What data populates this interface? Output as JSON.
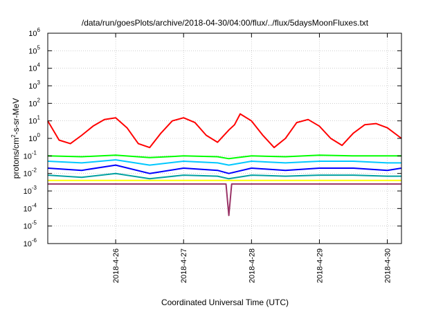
{
  "chart_data": {
    "type": "line",
    "title": "/data/run/goesPlots/archive/2018-04-30/04:00/flux/../flux/5daysMoonFluxes.txt",
    "xlabel": "Coordinated Universal Time (UTC)",
    "ylabel": "protons/cm2-s-sr-MeV",
    "ylabel_parts": {
      "before": "protons/cm",
      "sup": "2",
      "after": "-s-sr-MeV"
    },
    "y_scale": "log",
    "ylim": [
      1e-06,
      1000000.0
    ],
    "xlim": [
      "2018-04-25 00:00",
      "2018-04-30 05:00"
    ],
    "grid": true,
    "legend": "none",
    "y_ticks": [
      {
        "base": "10",
        "exp": "-6"
      },
      {
        "base": "10",
        "exp": "-5"
      },
      {
        "base": "10",
        "exp": "-4"
      },
      {
        "base": "10",
        "exp": "-3"
      },
      {
        "base": "10",
        "exp": "-2"
      },
      {
        "base": "10",
        "exp": "-1"
      },
      {
        "base": "10",
        "exp": "0"
      },
      {
        "base": "10",
        "exp": "1"
      },
      {
        "base": "10",
        "exp": "2"
      },
      {
        "base": "10",
        "exp": "3"
      },
      {
        "base": "10",
        "exp": "4"
      },
      {
        "base": "10",
        "exp": "5"
      },
      {
        "base": "10",
        "exp": "6"
      }
    ],
    "x_ticks": [
      "2018-4-26",
      "2018-4-27",
      "2018-4-28",
      "2018-4-29",
      "2018-4-30"
    ],
    "series": [
      {
        "color": "#ff0000",
        "x": [
          "2018-04-25 00:00",
          "2018-04-25 04:00",
          "2018-04-25 08:00",
          "2018-04-25 12:00",
          "2018-04-25 16:00",
          "2018-04-25 20:00",
          "2018-04-26 00:00",
          "2018-04-26 04:00",
          "2018-04-26 08:00",
          "2018-04-26 12:00",
          "2018-04-26 16:00",
          "2018-04-26 20:00",
          "2018-04-27 00:00",
          "2018-04-27 04:00",
          "2018-04-27 08:00",
          "2018-04-27 12:00",
          "2018-04-27 16:00",
          "2018-04-27 18:00",
          "2018-04-27 20:00",
          "2018-04-28 00:00",
          "2018-04-28 04:00",
          "2018-04-28 08:00",
          "2018-04-28 12:00",
          "2018-04-28 16:00",
          "2018-04-28 20:00",
          "2018-04-29 00:00",
          "2018-04-29 04:00",
          "2018-04-29 08:00",
          "2018-04-29 12:00",
          "2018-04-29 16:00",
          "2018-04-29 20:00",
          "2018-04-30 00:00",
          "2018-04-30 05:00"
        ],
        "y": [
          10,
          0.8,
          0.5,
          1.5,
          5,
          12,
          15,
          4,
          0.5,
          0.3,
          2,
          10,
          15,
          8,
          1.5,
          0.6,
          3,
          6,
          25,
          10,
          1.5,
          0.3,
          1,
          8,
          12,
          5,
          1,
          0.4,
          2,
          6,
          7,
          4,
          1
        ]
      },
      {
        "color": "#00ff00",
        "x": [
          "2018-04-25 00:00",
          "2018-04-25 12:00",
          "2018-04-26 00:00",
          "2018-04-26 12:00",
          "2018-04-27 00:00",
          "2018-04-27 12:00",
          "2018-04-27 16:00",
          "2018-04-28 00:00",
          "2018-04-28 12:00",
          "2018-04-29 00:00",
          "2018-04-29 12:00",
          "2018-04-30 00:00",
          "2018-04-30 05:00"
        ],
        "y": [
          0.1,
          0.09,
          0.11,
          0.08,
          0.1,
          0.09,
          0.07,
          0.1,
          0.09,
          0.11,
          0.1,
          0.1,
          0.1
        ]
      },
      {
        "color": "#0000ff",
        "x": [
          "2018-04-25 00:00",
          "2018-04-25 12:00",
          "2018-04-26 00:00",
          "2018-04-26 12:00",
          "2018-04-27 00:00",
          "2018-04-27 12:00",
          "2018-04-27 16:00",
          "2018-04-28 00:00",
          "2018-04-28 12:00",
          "2018-04-29 00:00",
          "2018-04-29 12:00",
          "2018-04-30 00:00",
          "2018-04-30 05:00"
        ],
        "y": [
          0.02,
          0.015,
          0.03,
          0.01,
          0.02,
          0.015,
          0.01,
          0.02,
          0.015,
          0.02,
          0.02,
          0.015,
          0.02
        ]
      },
      {
        "color": "#00c8ff",
        "x": [
          "2018-04-25 00:00",
          "2018-04-25 12:00",
          "2018-04-26 00:00",
          "2018-04-26 12:00",
          "2018-04-27 00:00",
          "2018-04-27 12:00",
          "2018-04-27 16:00",
          "2018-04-28 00:00",
          "2018-04-28 12:00",
          "2018-04-29 00:00",
          "2018-04-29 12:00",
          "2018-04-30 00:00",
          "2018-04-30 05:00"
        ],
        "y": [
          0.05,
          0.04,
          0.06,
          0.03,
          0.05,
          0.04,
          0.03,
          0.05,
          0.04,
          0.05,
          0.05,
          0.04,
          0.04
        ]
      },
      {
        "color": "#00a0a0",
        "x": [
          "2018-04-25 00:00",
          "2018-04-25 12:00",
          "2018-04-26 00:00",
          "2018-04-26 12:00",
          "2018-04-27 00:00",
          "2018-04-27 12:00",
          "2018-04-27 16:00",
          "2018-04-28 00:00",
          "2018-04-28 12:00",
          "2018-04-29 00:00",
          "2018-04-29 12:00",
          "2018-04-30 00:00",
          "2018-04-30 05:00"
        ],
        "y": [
          0.008,
          0.006,
          0.01,
          0.005,
          0.008,
          0.007,
          0.005,
          0.008,
          0.007,
          0.008,
          0.008,
          0.007,
          0.007
        ]
      },
      {
        "color": "#ffff00",
        "x": [
          "2018-04-25 00:00",
          "2018-04-26 00:00",
          "2018-04-27 00:00",
          "2018-04-27 16:00",
          "2018-04-28 00:00",
          "2018-04-29 00:00",
          "2018-04-30 00:00",
          "2018-04-30 05:00"
        ],
        "y": [
          0.004,
          0.004,
          0.004,
          0.004,
          0.004,
          0.004,
          0.004,
          0.004
        ]
      },
      {
        "color": "#993366",
        "x": [
          "2018-04-25 00:00",
          "2018-04-25 12:00",
          "2018-04-26 00:00",
          "2018-04-26 12:00",
          "2018-04-27 00:00",
          "2018-04-27 12:00",
          "2018-04-27 15:00",
          "2018-04-27 16:00",
          "2018-04-27 17:00",
          "2018-04-28 00:00",
          "2018-04-29 00:00",
          "2018-04-30 00:00",
          "2018-04-30 05:00"
        ],
        "y": [
          0.0025,
          0.0025,
          0.0025,
          0.0025,
          0.0025,
          0.0025,
          0.0025,
          4e-05,
          0.0025,
          0.0025,
          0.0025,
          0.0025,
          0.0025
        ]
      }
    ]
  }
}
